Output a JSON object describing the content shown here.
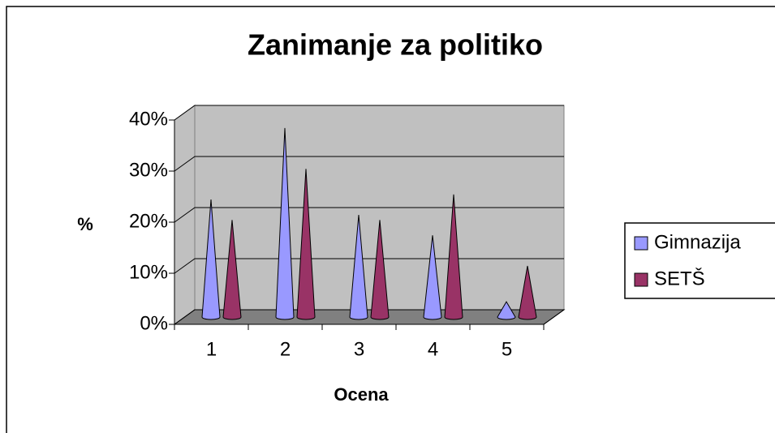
{
  "chart_data": {
    "type": "cone3d",
    "title": "Zanimanje za politiko",
    "x_label": "Ocena",
    "y_label": "%",
    "categories": [
      "1",
      "2",
      "3",
      "4",
      "5"
    ],
    "series": [
      {
        "name": "Gimnazija",
        "color": "#9999ff",
        "values": [
          23,
          37,
          20,
          16,
          3
        ]
      },
      {
        "name": "SETŠ",
        "color": "#993366",
        "values": [
          19,
          29,
          19,
          24,
          10
        ]
      }
    ],
    "ylim": [
      0,
      40
    ],
    "yticks": [
      {
        "value": 0,
        "label": "0%"
      },
      {
        "value": 10,
        "label": "10%"
      },
      {
        "value": 20,
        "label": "20%"
      },
      {
        "value": 30,
        "label": "30%"
      },
      {
        "value": 40,
        "label": "40%"
      }
    ],
    "grid": true,
    "legend": "right"
  }
}
